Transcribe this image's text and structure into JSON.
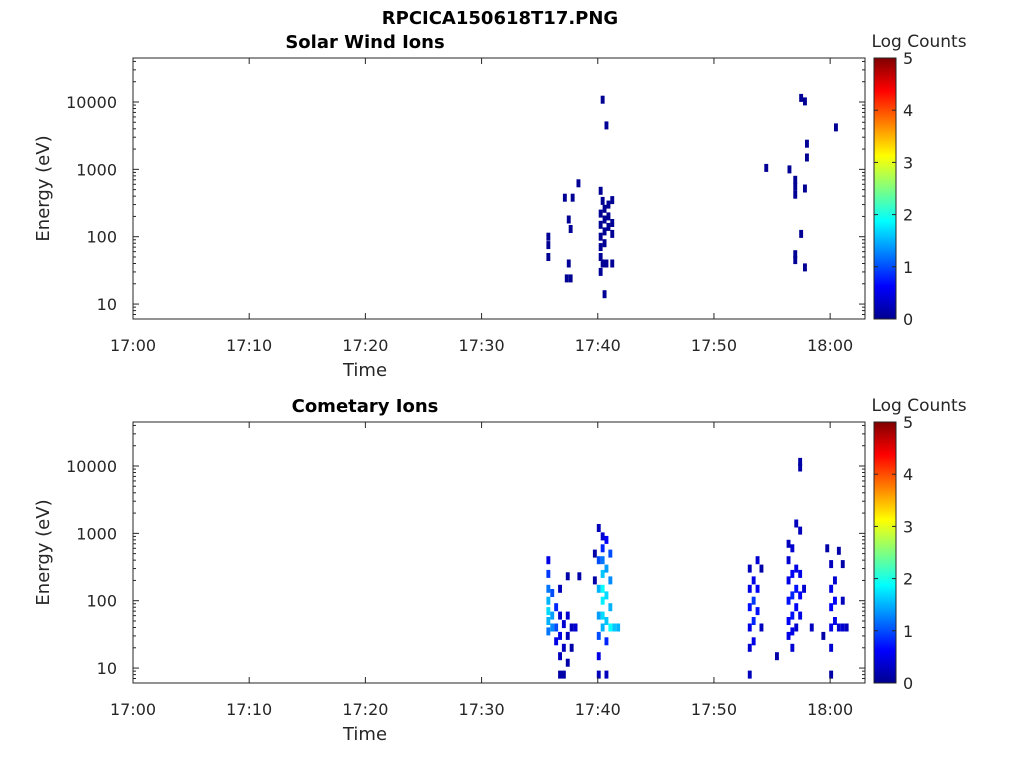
{
  "figure_title": "RPCICA150618T17.PNG",
  "chart_data": [
    {
      "type": "heatmap",
      "title": "Solar Wind Ions",
      "xlabel": "Time",
      "ylabel": "Energy (eV)",
      "x_ticks": [
        "17:00",
        "17:10",
        "17:20",
        "17:30",
        "17:40",
        "17:50",
        "18:00"
      ],
      "xlim": [
        "17:00",
        "18:03"
      ],
      "y_scale": "log",
      "y_ticks": [
        "10",
        "100",
        "1000",
        "10000"
      ],
      "ylim": [
        6,
        45000
      ],
      "grid": false,
      "colorbar": {
        "label": "Log Counts",
        "ticks": [
          "0",
          "1",
          "2",
          "3",
          "4",
          "5"
        ],
        "range": [
          0,
          5
        ],
        "colormap": "jet"
      },
      "cells": [
        {
          "t": "17:35:45",
          "e": 75,
          "v": 0.1
        },
        {
          "t": "17:35:45",
          "e": 50,
          "v": 0.1
        },
        {
          "t": "17:35:45",
          "e": 100,
          "v": 0.1
        },
        {
          "t": "17:37:10",
          "e": 380,
          "v": 0.1
        },
        {
          "t": "17:37:50",
          "e": 380,
          "v": 0.1
        },
        {
          "t": "17:38:20",
          "e": 620,
          "v": 0.1
        },
        {
          "t": "17:37:30",
          "e": 180,
          "v": 0.1
        },
        {
          "t": "17:37:40",
          "e": 130,
          "v": 0.1
        },
        {
          "t": "17:37:30",
          "e": 40,
          "v": 0.1
        },
        {
          "t": "17:37:40",
          "e": 24,
          "v": 0.1
        },
        {
          "t": "17:37:20",
          "e": 24,
          "v": 0.1
        },
        {
          "t": "17:40:25",
          "e": 10800,
          "v": 0.1
        },
        {
          "t": "17:40:45",
          "e": 4500,
          "v": 0.1
        },
        {
          "t": "17:40:15",
          "e": 480,
          "v": 0.1
        },
        {
          "t": "17:40:25",
          "e": 340,
          "v": 0.1
        },
        {
          "t": "17:40:15",
          "e": 220,
          "v": 0.1
        },
        {
          "t": "17:40:15",
          "e": 150,
          "v": 0.1
        },
        {
          "t": "17:40:15",
          "e": 100,
          "v": 0.1
        },
        {
          "t": "17:40:15",
          "e": 70,
          "v": 0.1
        },
        {
          "t": "17:40:15",
          "e": 50,
          "v": 0.1
        },
        {
          "t": "17:40:35",
          "e": 260,
          "v": 0.1
        },
        {
          "t": "17:40:35",
          "e": 180,
          "v": 0.1
        },
        {
          "t": "17:40:35",
          "e": 120,
          "v": 0.1
        },
        {
          "t": "17:40:35",
          "e": 80,
          "v": 0.1
        },
        {
          "t": "17:40:55",
          "e": 300,
          "v": 0.1
        },
        {
          "t": "17:40:55",
          "e": 200,
          "v": 0.1
        },
        {
          "t": "17:40:55",
          "e": 140,
          "v": 0.1
        },
        {
          "t": "17:41:15",
          "e": 350,
          "v": 0.1
        },
        {
          "t": "17:41:15",
          "e": 160,
          "v": 0.1
        },
        {
          "t": "17:41:15",
          "e": 110,
          "v": 0.1
        },
        {
          "t": "17:40:25",
          "e": 40,
          "v": 0.1
        },
        {
          "t": "17:40:45",
          "e": 40,
          "v": 0.1
        },
        {
          "t": "17:41:15",
          "e": 40,
          "v": 0.1
        },
        {
          "t": "17:40:15",
          "e": 30,
          "v": 0.1
        },
        {
          "t": "17:40:35",
          "e": 14,
          "v": 0.1
        },
        {
          "t": "17:54:30",
          "e": 1050,
          "v": 0.1
        },
        {
          "t": "17:56:30",
          "e": 1000,
          "v": 0.1
        },
        {
          "t": "17:57:00",
          "e": 700,
          "v": 0.1
        },
        {
          "t": "17:57:00",
          "e": 550,
          "v": 0.1
        },
        {
          "t": "17:57:00",
          "e": 420,
          "v": 0.1
        },
        {
          "t": "17:57:50",
          "e": 520,
          "v": 0.1
        },
        {
          "t": "17:57:30",
          "e": 11500,
          "v": 0.1
        },
        {
          "t": "17:57:50",
          "e": 10200,
          "v": 0.1
        },
        {
          "t": "17:58:00",
          "e": 2400,
          "v": 0.1
        },
        {
          "t": "17:58:00",
          "e": 1500,
          "v": 0.1
        },
        {
          "t": "18:00:30",
          "e": 4200,
          "v": 0.1
        },
        {
          "t": "17:57:30",
          "e": 110,
          "v": 0.1
        },
        {
          "t": "17:57:00",
          "e": 55,
          "v": 0.1
        },
        {
          "t": "17:57:00",
          "e": 45,
          "v": 0.1
        },
        {
          "t": "17:57:50",
          "e": 35,
          "v": 0.1
        }
      ]
    },
    {
      "type": "heatmap",
      "title": "Cometary Ions",
      "xlabel": "Time",
      "ylabel": "Energy (eV)",
      "x_ticks": [
        "17:00",
        "17:10",
        "17:20",
        "17:30",
        "17:40",
        "17:50",
        "18:00"
      ],
      "xlim": [
        "17:00",
        "18:03"
      ],
      "y_scale": "log",
      "y_ticks": [
        "10",
        "100",
        "1000",
        "10000"
      ],
      "ylim": [
        6,
        45000
      ],
      "grid": false,
      "colorbar": {
        "label": "Log Counts",
        "ticks": [
          "0",
          "1",
          "2",
          "3",
          "4",
          "5"
        ],
        "range": [
          0,
          5
        ],
        "colormap": "jet"
      },
      "cells": [
        {
          "t": "17:35:45",
          "e": 400,
          "v": 0.5
        },
        {
          "t": "17:35:45",
          "e": 250,
          "v": 0.9
        },
        {
          "t": "17:35:45",
          "e": 150,
          "v": 1.2
        },
        {
          "t": "17:35:45",
          "e": 100,
          "v": 1.5
        },
        {
          "t": "17:35:45",
          "e": 70,
          "v": 1.7
        },
        {
          "t": "17:35:45",
          "e": 50,
          "v": 1.5
        },
        {
          "t": "17:35:45",
          "e": 35,
          "v": 1.2
        },
        {
          "t": "17:36:05",
          "e": 130,
          "v": 1.0
        },
        {
          "t": "17:36:05",
          "e": 60,
          "v": 1.4
        },
        {
          "t": "17:36:05",
          "e": 40,
          "v": 1.3
        },
        {
          "t": "17:36:25",
          "e": 80,
          "v": 0.8
        },
        {
          "t": "17:36:25",
          "e": 40,
          "v": 1.0
        },
        {
          "t": "17:36:25",
          "e": 25,
          "v": 0.5
        },
        {
          "t": "17:36:45",
          "e": 150,
          "v": 0.3
        },
        {
          "t": "17:36:45",
          "e": 60,
          "v": 0.4
        },
        {
          "t": "17:36:45",
          "e": 30,
          "v": 0.5
        },
        {
          "t": "17:36:45",
          "e": 15,
          "v": 0.3
        },
        {
          "t": "17:36:45",
          "e": 8,
          "v": 0.2
        },
        {
          "t": "17:37:05",
          "e": 45,
          "v": 0.4
        },
        {
          "t": "17:37:05",
          "e": 20,
          "v": 0.3
        },
        {
          "t": "17:37:05",
          "e": 8,
          "v": 0.2
        },
        {
          "t": "17:37:25",
          "e": 60,
          "v": 0.4
        },
        {
          "t": "17:37:25",
          "e": 30,
          "v": 0.3
        },
        {
          "t": "17:37:25",
          "e": 12,
          "v": 0.2
        },
        {
          "t": "17:37:45",
          "e": 40,
          "v": 0.3
        },
        {
          "t": "17:37:45",
          "e": 20,
          "v": 0.2
        },
        {
          "t": "17:38:05",
          "e": 40,
          "v": 0.4
        },
        {
          "t": "17:37:25",
          "e": 230,
          "v": 0.2
        },
        {
          "t": "17:38:25",
          "e": 230,
          "v": 0.2
        },
        {
          "t": "17:40:05",
          "e": 1200,
          "v": 0.3
        },
        {
          "t": "17:40:25",
          "e": 900,
          "v": 0.4
        },
        {
          "t": "17:40:25",
          "e": 600,
          "v": 0.8
        },
        {
          "t": "17:40:25",
          "e": 400,
          "v": 1.2
        },
        {
          "t": "17:40:25",
          "e": 250,
          "v": 1.6
        },
        {
          "t": "17:40:25",
          "e": 150,
          "v": 1.9
        },
        {
          "t": "17:40:25",
          "e": 100,
          "v": 1.8
        },
        {
          "t": "17:40:25",
          "e": 60,
          "v": 1.7
        },
        {
          "t": "17:40:25",
          "e": 40,
          "v": 1.5
        },
        {
          "t": "17:40:05",
          "e": 400,
          "v": 1.0
        },
        {
          "t": "17:40:05",
          "e": 150,
          "v": 1.5
        },
        {
          "t": "17:40:05",
          "e": 60,
          "v": 1.4
        },
        {
          "t": "17:40:05",
          "e": 30,
          "v": 1.0
        },
        {
          "t": "17:40:05",
          "e": 15,
          "v": 0.5
        },
        {
          "t": "17:40:05",
          "e": 8,
          "v": 0.3
        },
        {
          "t": "17:40:45",
          "e": 800,
          "v": 0.6
        },
        {
          "t": "17:40:45",
          "e": 300,
          "v": 1.4
        },
        {
          "t": "17:40:45",
          "e": 120,
          "v": 1.7
        },
        {
          "t": "17:40:45",
          "e": 50,
          "v": 1.6
        },
        {
          "t": "17:40:45",
          "e": 25,
          "v": 0.8
        },
        {
          "t": "17:40:45",
          "e": 8,
          "v": 0.3
        },
        {
          "t": "17:41:05",
          "e": 500,
          "v": 1.0
        },
        {
          "t": "17:41:05",
          "e": 200,
          "v": 1.3
        },
        {
          "t": "17:41:05",
          "e": 80,
          "v": 1.5
        },
        {
          "t": "17:41:05",
          "e": 40,
          "v": 1.9
        },
        {
          "t": "17:41:25",
          "e": 40,
          "v": 1.6
        },
        {
          "t": "17:41:45",
          "e": 40,
          "v": 1.5
        },
        {
          "t": "17:39:45",
          "e": 500,
          "v": 0.2
        },
        {
          "t": "17:39:45",
          "e": 200,
          "v": 0.2
        },
        {
          "t": "17:53:05",
          "e": 300,
          "v": 0.3
        },
        {
          "t": "17:53:05",
          "e": 150,
          "v": 0.5
        },
        {
          "t": "17:53:05",
          "e": 80,
          "v": 0.7
        },
        {
          "t": "17:53:05",
          "e": 40,
          "v": 0.5
        },
        {
          "t": "17:53:05",
          "e": 20,
          "v": 0.4
        },
        {
          "t": "17:53:05",
          "e": 8,
          "v": 0.3
        },
        {
          "t": "17:53:25",
          "e": 200,
          "v": 0.5
        },
        {
          "t": "17:53:25",
          "e": 100,
          "v": 0.9
        },
        {
          "t": "17:53:25",
          "e": 50,
          "v": 0.8
        },
        {
          "t": "17:53:25",
          "e": 25,
          "v": 0.5
        },
        {
          "t": "17:53:45",
          "e": 400,
          "v": 0.4
        },
        {
          "t": "17:53:45",
          "e": 150,
          "v": 0.6
        },
        {
          "t": "17:53:45",
          "e": 70,
          "v": 0.7
        },
        {
          "t": "17:54:05",
          "e": 300,
          "v": 0.2
        },
        {
          "t": "17:54:05",
          "e": 40,
          "v": 0.3
        },
        {
          "t": "17:55:25",
          "e": 15,
          "v": 0.2
        },
        {
          "t": "17:56:25",
          "e": 700,
          "v": 0.3
        },
        {
          "t": "17:56:25",
          "e": 400,
          "v": 0.4
        },
        {
          "t": "17:56:25",
          "e": 200,
          "v": 0.5
        },
        {
          "t": "17:56:25",
          "e": 100,
          "v": 0.7
        },
        {
          "t": "17:56:25",
          "e": 50,
          "v": 0.6
        },
        {
          "t": "17:56:25",
          "e": 30,
          "v": 0.5
        },
        {
          "t": "17:56:45",
          "e": 600,
          "v": 0.4
        },
        {
          "t": "17:56:45",
          "e": 250,
          "v": 0.6
        },
        {
          "t": "17:56:45",
          "e": 120,
          "v": 0.8
        },
        {
          "t": "17:56:45",
          "e": 60,
          "v": 0.7
        },
        {
          "t": "17:56:45",
          "e": 35,
          "v": 0.5
        },
        {
          "t": "17:56:45",
          "e": 20,
          "v": 0.4
        },
        {
          "t": "17:57:05",
          "e": 1400,
          "v": 0.3
        },
        {
          "t": "17:57:05",
          "e": 300,
          "v": 0.5
        },
        {
          "t": "17:57:05",
          "e": 150,
          "v": 0.7
        },
        {
          "t": "17:57:05",
          "e": 80,
          "v": 0.6
        },
        {
          "t": "17:57:05",
          "e": 40,
          "v": 0.4
        },
        {
          "t": "17:57:25",
          "e": 11500,
          "v": 0.2
        },
        {
          "t": "17:57:25",
          "e": 9500,
          "v": 0.2
        },
        {
          "t": "17:57:25",
          "e": 1100,
          "v": 0.3
        },
        {
          "t": "17:57:25",
          "e": 250,
          "v": 0.5
        },
        {
          "t": "17:57:25",
          "e": 120,
          "v": 0.6
        },
        {
          "t": "17:57:25",
          "e": 60,
          "v": 0.5
        },
        {
          "t": "17:57:45",
          "e": 150,
          "v": 0.4
        },
        {
          "t": "17:58:25",
          "e": 40,
          "v": 0.3
        },
        {
          "t": "17:59:25",
          "e": 30,
          "v": 0.2
        },
        {
          "t": "18:00:05",
          "e": 350,
          "v": 0.3
        },
        {
          "t": "18:00:05",
          "e": 150,
          "v": 0.5
        },
        {
          "t": "18:00:05",
          "e": 80,
          "v": 0.6
        },
        {
          "t": "18:00:05",
          "e": 40,
          "v": 0.5
        },
        {
          "t": "18:00:05",
          "e": 20,
          "v": 0.4
        },
        {
          "t": "18:00:05",
          "e": 8,
          "v": 0.2
        },
        {
          "t": "18:00:25",
          "e": 200,
          "v": 0.4
        },
        {
          "t": "18:00:25",
          "e": 100,
          "v": 0.6
        },
        {
          "t": "18:00:25",
          "e": 50,
          "v": 0.5
        },
        {
          "t": "18:00:45",
          "e": 550,
          "v": 0.2
        },
        {
          "t": "18:00:45",
          "e": 40,
          "v": 0.4
        },
        {
          "t": "18:01:05",
          "e": 40,
          "v": 0.4
        },
        {
          "t": "18:01:05",
          "e": 100,
          "v": 0.3
        },
        {
          "t": "18:01:05",
          "e": 350,
          "v": 0.2
        },
        {
          "t": "18:01:25",
          "e": 40,
          "v": 0.3
        },
        {
          "t": "17:59:45",
          "e": 600,
          "v": 0.2
        }
      ]
    }
  ]
}
